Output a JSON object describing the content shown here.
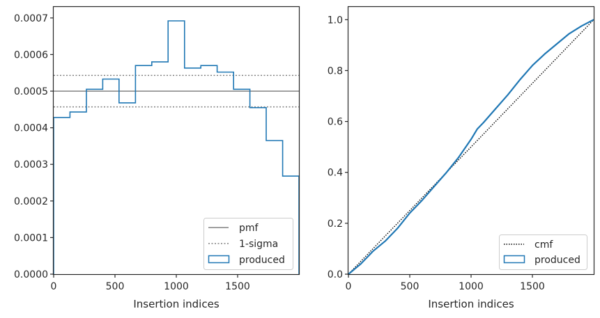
{
  "chart_data": [
    {
      "type": "histogram",
      "xlabel": "Insertion indices",
      "ylabel": "",
      "xlim": [
        0,
        2000
      ],
      "ylim": [
        0,
        0.00073
      ],
      "xticks": [
        0,
        500,
        1000,
        1500
      ],
      "xtick_labels": [
        "0",
        "500",
        "1000",
        "1500"
      ],
      "yticks": [
        0,
        0.0001,
        0.0002,
        0.0003,
        0.0004,
        0.0005,
        0.0006,
        0.0007
      ],
      "ytick_labels": [
        "0.0000",
        "0.0001",
        "0.0002",
        "0.0003",
        "0.0004",
        "0.0005",
        "0.0006",
        "0.0007"
      ],
      "pmf": 0.0005,
      "sigma_band": [
        0.000457,
        0.000543
      ],
      "bins": [
        0,
        133,
        267,
        400,
        533,
        667,
        800,
        933,
        1067,
        1200,
        1333,
        1467,
        1600,
        1733,
        1867,
        2000
      ],
      "series": [
        {
          "name": "produced",
          "values": [
            0.000428,
            0.000443,
            0.000505,
            0.000533,
            0.000468,
            0.00057,
            0.00058,
            0.000692,
            0.000563,
            0.00057,
            0.000552,
            0.000505,
            0.000455,
            0.000365,
            0.000268
          ]
        }
      ],
      "legend": {
        "placement": "lower-right",
        "entries": [
          "pmf",
          "1-sigma",
          "produced"
        ]
      },
      "colors": {
        "produced": "#1f77b4",
        "pmf": "#808080",
        "sigma": "#808080"
      }
    },
    {
      "type": "line",
      "xlabel": "Insertion indices",
      "ylabel": "",
      "xlim": [
        0,
        2000
      ],
      "ylim": [
        0,
        1.05
      ],
      "xticks": [
        0,
        500,
        1000,
        1500
      ],
      "xtick_labels": [
        "0",
        "500",
        "1000",
        "1500"
      ],
      "yticks": [
        0,
        0.2,
        0.4,
        0.6,
        0.8,
        1.0
      ],
      "ytick_labels": [
        "0.0",
        "0.2",
        "0.4",
        "0.6",
        "0.8",
        "1.0"
      ],
      "series": [
        {
          "name": "cmf",
          "x": [
            0,
            2000
          ],
          "y": [
            0,
            1.0
          ]
        },
        {
          "name": "produced",
          "x": [
            0,
            100,
            200,
            300,
            400,
            500,
            600,
            700,
            800,
            900,
            1000,
            1050,
            1100,
            1200,
            1300,
            1400,
            1500,
            1600,
            1700,
            1800,
            1900,
            2000
          ],
          "y": [
            0,
            0.04,
            0.09,
            0.13,
            0.18,
            0.24,
            0.29,
            0.345,
            0.4,
            0.46,
            0.53,
            0.57,
            0.595,
            0.65,
            0.705,
            0.765,
            0.82,
            0.865,
            0.905,
            0.945,
            0.975,
            1.0
          ]
        }
      ],
      "legend": {
        "placement": "lower-right",
        "entries": [
          "cmf",
          "produced"
        ]
      },
      "colors": {
        "produced": "#1f77b4",
        "cmf": "#000000"
      }
    }
  ]
}
